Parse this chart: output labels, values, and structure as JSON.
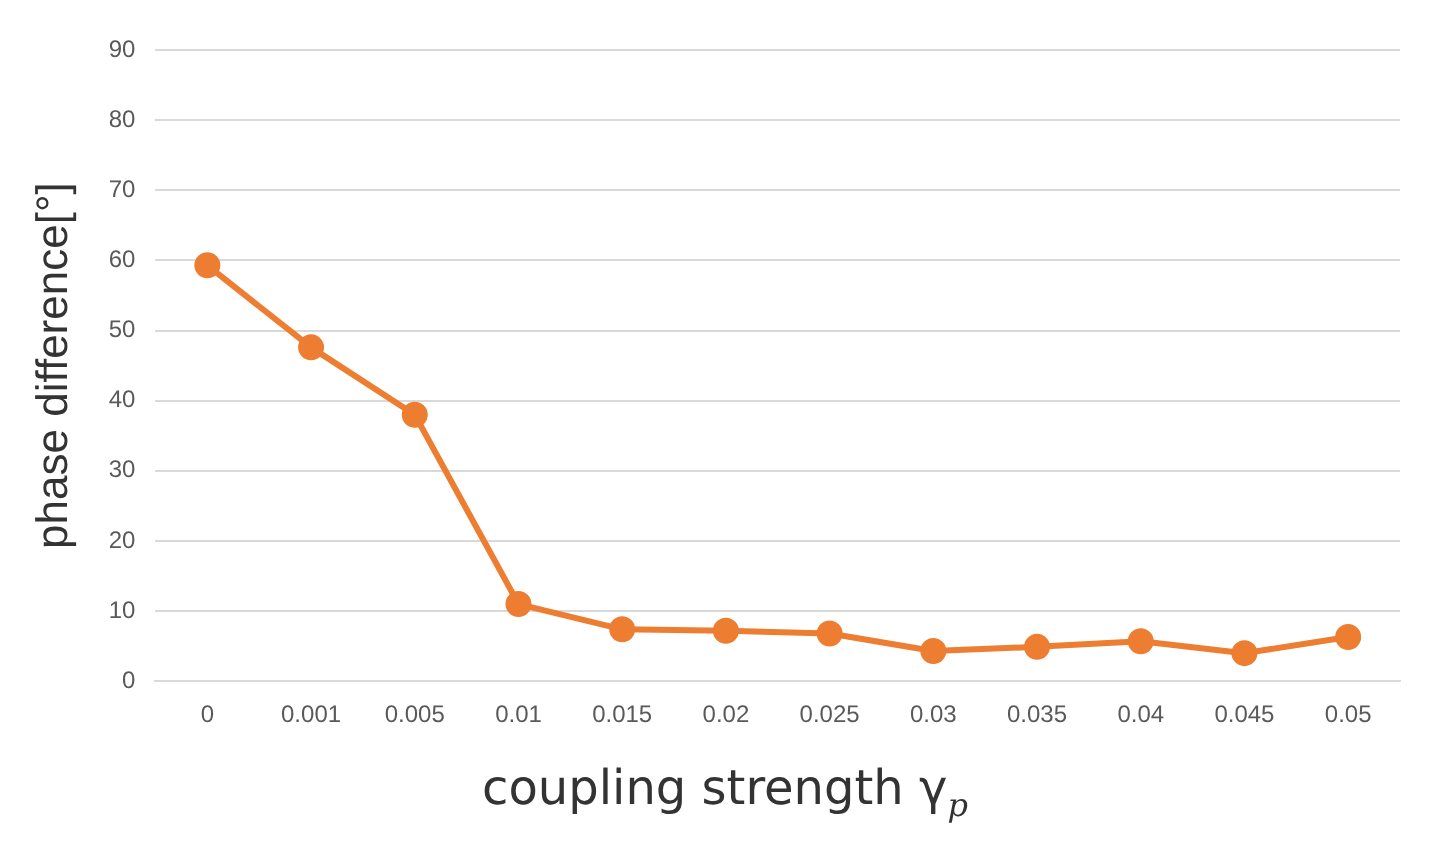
{
  "chart_data": {
    "type": "line",
    "xlabel": "coupling strength γ$_{p}$",
    "ylabel": "phase difference[°]",
    "categories": [
      "0",
      "0.001",
      "0.005",
      "0.01",
      "0.015",
      "0.02",
      "0.025",
      "0.03",
      "0.035",
      "0.04",
      "0.045",
      "0.05"
    ],
    "series": [
      {
        "color": "#ed7d31",
        "values": [
          59.3,
          47.6,
          38,
          11,
          7.4,
          7.2,
          6.8,
          4.3,
          4.9,
          5.7,
          4.0,
          6.3
        ]
      }
    ],
    "ylim": [
      0,
      90
    ],
    "yticks": [
      0,
      10,
      20,
      30,
      40,
      50,
      60,
      70,
      80,
      90
    ],
    "grid": "y",
    "legend": false,
    "marker": "circle",
    "line_style": "solid"
  }
}
